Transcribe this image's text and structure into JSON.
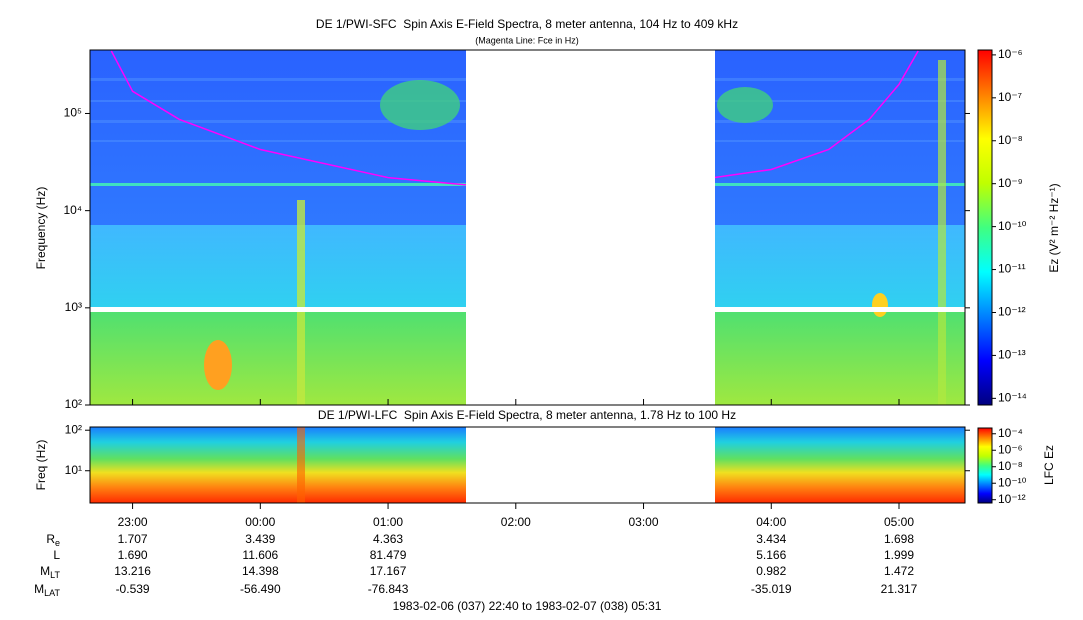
{
  "chart_data": [
    {
      "type": "spectrogram",
      "title": "DE 1/PWI-SFC  Spin Axis E-Field Spectra, 8 meter antenna, 104 Hz to 409 kHz",
      "subtitle": "(Magenta Line: Fce in Hz)",
      "y_label": "Frequency (Hz)",
      "ylim": [
        100,
        450000
      ],
      "y_log": true,
      "yticks": [
        {
          "value": 100,
          "label": "10²"
        },
        {
          "value": 1000,
          "label": "10³"
        },
        {
          "value": 10000,
          "label": "10⁴"
        },
        {
          "value": 100000,
          "label": "10⁵"
        }
      ],
      "series": [
        {
          "color": "#ff00ff",
          "x": [
            "22:50",
            "23:00",
            "23:22",
            "00:00",
            "01:00",
            "01:36",
            "03:33",
            "04:00",
            "04:27",
            "04:46",
            "05:00",
            "05:09"
          ],
          "values": [
            440000,
            169000,
            87000,
            42600,
            21900,
            18500,
            21900,
            26500,
            42600,
            87000,
            199000,
            440000
          ]
        }
      ],
      "colorbar_label": "Ez (V² m⁻² Hz⁻¹)",
      "clim": [
        7e-15,
        1.3e-06
      ],
      "cticks": [
        {
          "value": 1e-06,
          "label": "10⁻⁶"
        },
        {
          "value": 1e-07,
          "label": "10⁻⁷"
        },
        {
          "value": 1e-08,
          "label": "10⁻⁸"
        },
        {
          "value": 1e-09,
          "label": "10⁻⁹"
        },
        {
          "value": 1e-10,
          "label": "10⁻¹⁰"
        },
        {
          "value": 1e-11,
          "label": "10⁻¹¹"
        },
        {
          "value": 1e-12,
          "label": "10⁻¹²"
        },
        {
          "value": 1e-13,
          "label": "10⁻¹³"
        },
        {
          "value": 1e-14,
          "label": "10⁻¹⁴"
        }
      ],
      "colormap": [
        "#00007f",
        "#0000ff",
        "#0080ff",
        "#00ffff",
        "#40ff80",
        "#c0ff00",
        "#ffff00",
        "#ff8000",
        "#ff0000"
      ]
    },
    {
      "type": "spectrogram",
      "title": "DE 1/PWI-LFC  Spin Axis E-Field Spectra, 8 meter antenna, 1.78 Hz to 100 Hz",
      "y_label": "Freq (Hz)",
      "ylim": [
        1.6,
        120
      ],
      "y_log": true,
      "yticks": [
        {
          "value": 10,
          "label": "10¹"
        },
        {
          "value": 100,
          "label": "10²"
        }
      ],
      "xlim": [
        "22:40",
        "05:31"
      ],
      "xticks": [
        "23:00",
        "00:00",
        "01:00",
        "02:00",
        "03:00",
        "04:00",
        "05:00"
      ],
      "colorbar_label": "LFC Ez",
      "clim": [
        4e-13,
        0.0005
      ],
      "cticks": [
        {
          "value": 0.0001,
          "label": "10⁻⁴"
        },
        {
          "value": 1e-06,
          "label": "10⁻⁶"
        },
        {
          "value": 1e-08,
          "label": "10⁻⁸"
        },
        {
          "value": 1e-10,
          "label": "10⁻¹⁰"
        },
        {
          "value": 1e-12,
          "label": "10⁻¹²"
        }
      ],
      "colormap": [
        "#00007f",
        "#0000ff",
        "#0080ff",
        "#00ffff",
        "#40ff80",
        "#c0ff00",
        "#ffff00",
        "#ff8000",
        "#ff0000"
      ]
    }
  ],
  "ephemeris": {
    "rows": [
      {
        "label": "R",
        "sub": "e",
        "values": [
          "1.707",
          "3.439",
          "4.363",
          null,
          null,
          "3.434",
          "1.698"
        ]
      },
      {
        "label": "L",
        "sub": null,
        "values": [
          "1.690",
          "11.606",
          "81.479",
          null,
          null,
          "5.166",
          "1.999"
        ]
      },
      {
        "label": "M",
        "sub": "LT",
        "values": [
          "13.216",
          "14.398",
          "17.167",
          null,
          null,
          "0.982",
          "1.472"
        ]
      },
      {
        "label": "M",
        "sub": "LAT",
        "values": [
          "-0.539",
          "-56.490",
          "-76.843",
          null,
          null,
          "-35.019",
          "21.317"
        ]
      }
    ]
  },
  "footer": "1983-02-06 (037) 22:40 to 1983-02-07 (038) 05:31"
}
